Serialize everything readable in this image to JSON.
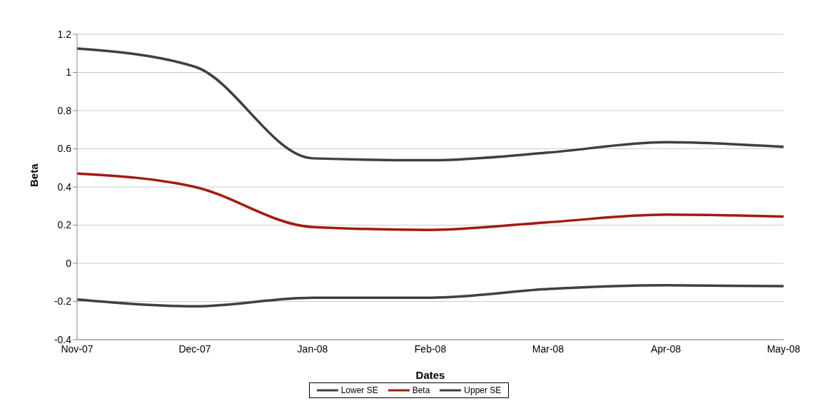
{
  "chart_data": {
    "type": "line",
    "xlabel": "Dates",
    "ylabel": "Beta",
    "categories": [
      "Nov-07",
      "Dec-07",
      "Jan-08",
      "Feb-08",
      "Mar-08",
      "Apr-08",
      "May-08"
    ],
    "series": [
      {
        "name": "Lower SE",
        "color": "#404040",
        "values": [
          -0.19,
          -0.225,
          -0.18,
          -0.18,
          -0.135,
          -0.115,
          -0.12
        ]
      },
      {
        "name": "Beta",
        "color": "#a01c10",
        "values": [
          0.47,
          0.4,
          0.19,
          0.175,
          0.215,
          0.255,
          0.245
        ]
      },
      {
        "name": "Upper SE",
        "color": "#404040",
        "values": [
          1.125,
          1.03,
          0.55,
          0.54,
          0.58,
          0.635,
          0.61
        ]
      }
    ],
    "ylim": [
      -0.4,
      1.2
    ],
    "yticks": [
      -0.4,
      -0.2,
      0,
      0.2,
      0.4,
      0.6,
      0.8,
      1,
      1.2
    ],
    "grid": "y",
    "legend": "bottom",
    "marker": "none",
    "line_style": "solid"
  }
}
